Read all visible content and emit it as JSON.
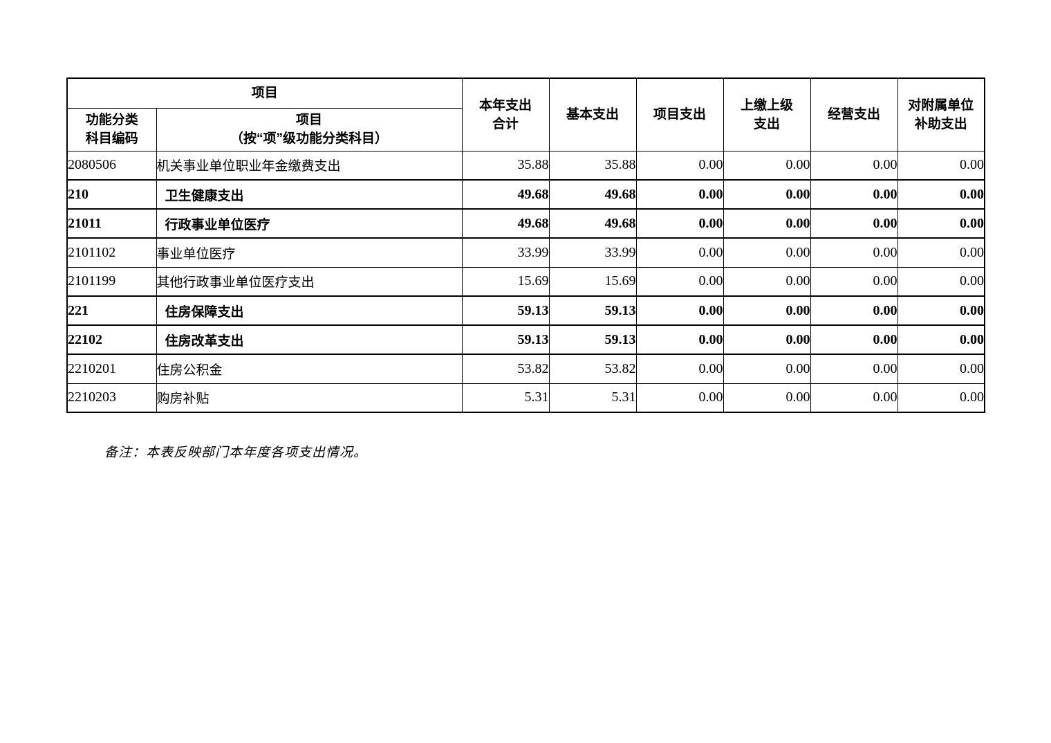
{
  "table": {
    "header": {
      "project_group": "项目",
      "code": [
        "功能分类",
        "科目编码"
      ],
      "name": [
        "项目",
        "（按“项”级功能分类科目）"
      ],
      "total": [
        "本年支出",
        "合计"
      ],
      "basic": "基本支出",
      "project": "项目支出",
      "upper": [
        "上缴上级",
        "支出"
      ],
      "operating": "经营支出",
      "subsidy": [
        "对附属单位",
        "补助支出"
      ]
    },
    "rows": [
      {
        "code": "2080506",
        "name": "机关事业单位职业年金缴费支出",
        "values": [
          "35.88",
          "35.88",
          "0.00",
          "0.00",
          "0.00",
          "0.00"
        ],
        "bold": false
      },
      {
        "code": "210",
        "name": "卫生健康支出",
        "values": [
          "49.68",
          "49.68",
          "0.00",
          "0.00",
          "0.00",
          "0.00"
        ],
        "bold": true
      },
      {
        "code": "21011",
        "name": "行政事业单位医疗",
        "values": [
          "49.68",
          "49.68",
          "0.00",
          "0.00",
          "0.00",
          "0.00"
        ],
        "bold": true
      },
      {
        "code": "2101102",
        "name": "事业单位医疗",
        "values": [
          "33.99",
          "33.99",
          "0.00",
          "0.00",
          "0.00",
          "0.00"
        ],
        "bold": false
      },
      {
        "code": "2101199",
        "name": "其他行政事业单位医疗支出",
        "values": [
          "15.69",
          "15.69",
          "0.00",
          "0.00",
          "0.00",
          "0.00"
        ],
        "bold": false
      },
      {
        "code": "221",
        "name": "住房保障支出",
        "values": [
          "59.13",
          "59.13",
          "0.00",
          "0.00",
          "0.00",
          "0.00"
        ],
        "bold": true
      },
      {
        "code": "22102",
        "name": "住房改革支出",
        "values": [
          "59.13",
          "59.13",
          "0.00",
          "0.00",
          "0.00",
          "0.00"
        ],
        "bold": true
      },
      {
        "code": "2210201",
        "name": "住房公积金",
        "values": [
          "53.82",
          "53.82",
          "0.00",
          "0.00",
          "0.00",
          "0.00"
        ],
        "bold": false
      },
      {
        "code": "2210203",
        "name": "购房补贴",
        "values": [
          "5.31",
          "5.31",
          "0.00",
          "0.00",
          "0.00",
          "0.00"
        ],
        "bold": false
      }
    ],
    "note": "备注：本表反映部门本年度各项支出情况。"
  }
}
